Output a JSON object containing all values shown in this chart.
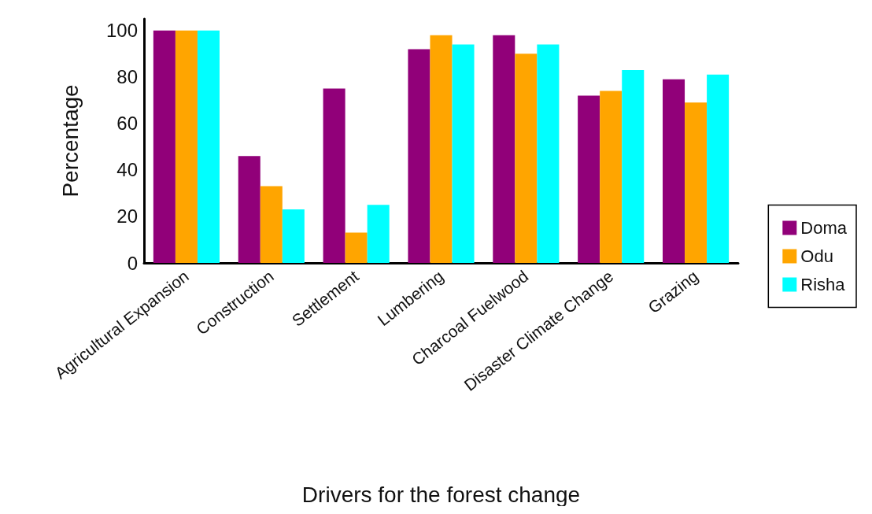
{
  "chart_data": {
    "type": "bar",
    "xlabel": "Drivers for the forest change",
    "ylabel": "Percentage",
    "categories": [
      "Agricultural Expansion",
      "Construction",
      "Settlement",
      "Lumbering",
      "Charcoal Fuelwood",
      "Disaster Climate Change",
      "Grazing"
    ],
    "series": [
      {
        "name": "Doma",
        "color": "#910079",
        "values": [
          100,
          46,
          75,
          92,
          98,
          72,
          79
        ]
      },
      {
        "name": "Odu",
        "color": "#ffa500",
        "values": [
          100,
          33,
          13,
          98,
          90,
          74,
          69
        ]
      },
      {
        "name": "Risha",
        "color": "#00ffff",
        "values": [
          100,
          23,
          25,
          94,
          94,
          83,
          81
        ]
      }
    ],
    "ylim": [
      0,
      105
    ],
    "yticks": [
      0,
      20,
      40,
      60,
      80,
      100
    ],
    "grid": false,
    "legend": "right"
  }
}
